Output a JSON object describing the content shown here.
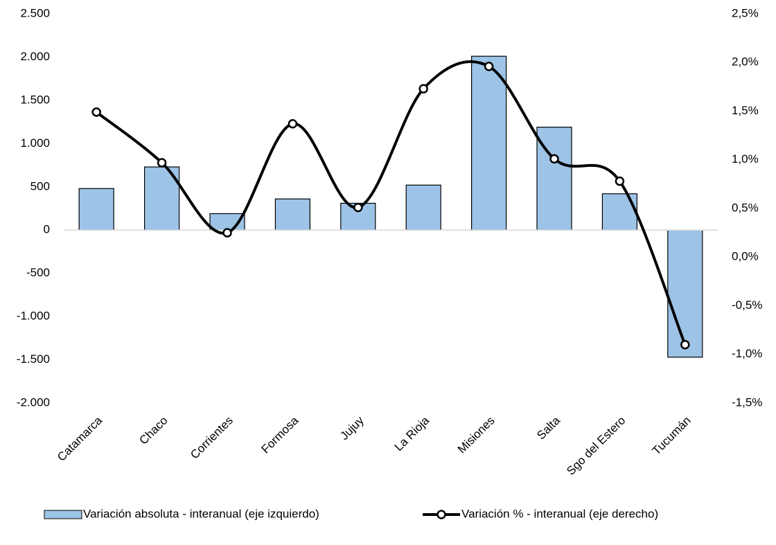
{
  "chart_data": {
    "type": "bar_line",
    "categories": [
      "Catamarca",
      "Chaco",
      "Corrientes",
      "Formosa",
      "Jujuy",
      "La Rioja",
      "Misiones",
      "Salta",
      "Sgo del Estero",
      "Tucumán"
    ],
    "series": [
      {
        "name": "Variación absoluta - interanual (eje izquierdo)",
        "type": "bar",
        "color": "#9dc3e6",
        "values": [
          480,
          730,
          190,
          360,
          310,
          520,
          2010,
          1190,
          420,
          -1470
        ]
      },
      {
        "name": "Variación % - interanual (eje derecho)",
        "type": "line",
        "axis": "y2",
        "color": "#000000",
        "values": [
          1.49,
          0.97,
          0.25,
          1.37,
          0.51,
          1.73,
          1.96,
          1.01,
          0.78,
          -0.9
        ]
      }
    ],
    "ylim": [
      -2000,
      2500
    ],
    "yticks": [
      {
        "value": -2000,
        "label": "-2.000"
      },
      {
        "value": -1500,
        "label": "-1.500"
      },
      {
        "value": -1000,
        "label": "-1.000"
      },
      -500,
      0,
      500,
      {
        "value": 1000,
        "label": "1.000"
      },
      {
        "value": 1500,
        "label": "1.500"
      },
      {
        "value": 2000,
        "label": "2.000"
      },
      {
        "value": 2500,
        "label": "2.500"
      }
    ],
    "y2lim": [
      -1.5,
      2.5
    ],
    "y2ticks": [
      {
        "value": -1.5,
        "label": "-1,5%"
      },
      {
        "value": -1,
        "label": "-1,0%"
      },
      {
        "value": -0.5,
        "label": "-0,5%"
      },
      {
        "value": 0,
        "label": "0,0%"
      },
      {
        "value": 0.5,
        "label": "0,5%"
      },
      {
        "value": 1,
        "label": "1,0%"
      },
      {
        "value": 1.5,
        "label": "1,5%"
      },
      {
        "value": 2,
        "label": "2,0%"
      },
      {
        "value": 2.5,
        "label": "2,5%"
      }
    ],
    "grid": false,
    "legend": "bottom"
  }
}
